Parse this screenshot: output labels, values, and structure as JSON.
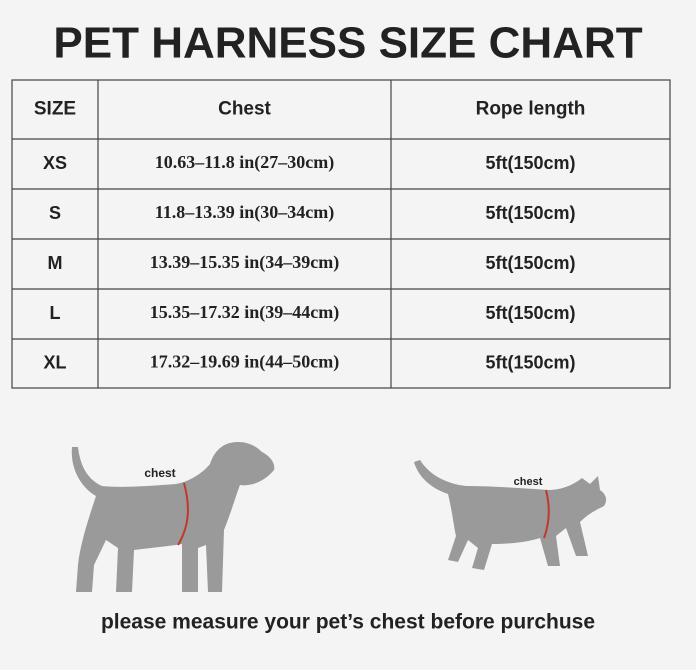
{
  "title": "PET HARNESS SIZE CHART",
  "table": {
    "header": [
      "SIZE",
      "Chest",
      "Rope length"
    ],
    "rows": [
      [
        "XS",
        "10.63–11.8 in(27–30cm)",
        "5ft(150cm)"
      ],
      [
        "S",
        "11.8–13.39 in(30–34cm)",
        "5ft(150cm)"
      ],
      [
        "M",
        "13.39–15.35 in(34–39cm)",
        "5ft(150cm)"
      ],
      [
        "L",
        "15.35–17.32 in(39–44cm)",
        "5ft(150cm)"
      ],
      [
        "XL",
        "17.32–19.69 in(44–50cm)",
        "5ft(150cm)"
      ]
    ]
  },
  "illustrations": {
    "dog_label": "chest",
    "cat_label": "chest"
  },
  "footer": "please measure your pet’s chest before purchuse"
}
